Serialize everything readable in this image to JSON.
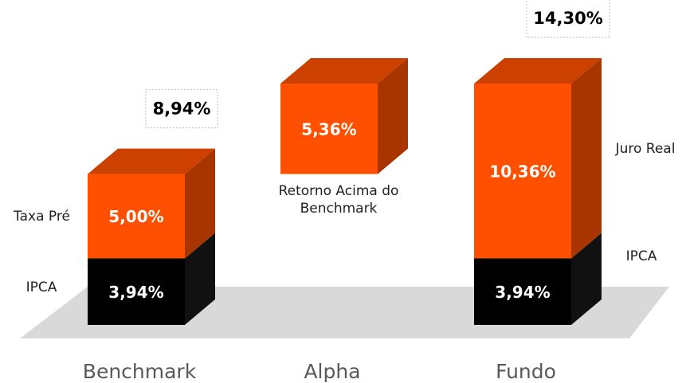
{
  "chart_data": {
    "type": "bar",
    "categories": [
      "Benchmark",
      "Alpha",
      "Fundo"
    ],
    "series": [
      {
        "name": "IPCA",
        "color": "#000000",
        "values": [
          3.94,
          null,
          3.94
        ],
        "value_labels": [
          "3,94%",
          null,
          "3,94%"
        ]
      },
      {
        "name": "Taxa Pré",
        "color": "#ff5000",
        "values": [
          5.0,
          null,
          null
        ],
        "value_labels": [
          "5,00%",
          null,
          null
        ]
      },
      {
        "name": "Retorno Acima do Benchmark",
        "color": "#ff5000",
        "values": [
          null,
          5.36,
          null
        ],
        "value_labels": [
          null,
          "5,36%",
          null
        ]
      },
      {
        "name": "Juro Real",
        "color": "#ff5000",
        "values": [
          null,
          null,
          10.36
        ],
        "value_labels": [
          null,
          null,
          "10,36%"
        ]
      }
    ],
    "totals": [
      8.94,
      null,
      14.3
    ],
    "total_labels": [
      "8,94%",
      null,
      "14,30%"
    ]
  }
}
